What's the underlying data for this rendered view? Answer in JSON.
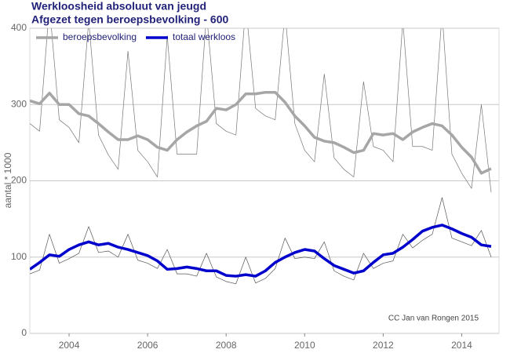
{
  "chart_data": {
    "type": "line",
    "title": "Werkloosheid absoluut van jeugd",
    "subtitle": "Afgezet tegen beroepsbevolking - 600",
    "ylabel": "aantal * 1000",
    "annotation": "CC Jan van Rongen 2015",
    "xlim": [
      2003,
      2014.95
    ],
    "xticks": [
      2004,
      2006,
      2008,
      2010,
      2012,
      2014
    ],
    "ylim": [
      0,
      400
    ],
    "yticks": [
      0,
      100,
      200,
      300,
      400
    ],
    "grid": true,
    "legend": "top-left",
    "x": [
      2003,
      2003.25,
      2003.5,
      2003.75,
      2004,
      2004.25,
      2004.5,
      2004.75,
      2005,
      2005.25,
      2005.5,
      2005.75,
      2006,
      2006.25,
      2006.5,
      2006.75,
      2007,
      2007.25,
      2007.5,
      2007.75,
      2008,
      2008.25,
      2008.5,
      2008.75,
      2009,
      2009.25,
      2009.5,
      2009.75,
      2010,
      2010.25,
      2010.5,
      2010.75,
      2011,
      2011.25,
      2011.5,
      2011.75,
      2012,
      2012.25,
      2012.5,
      2012.75,
      2013,
      2013.25,
      2013.5,
      2013.75,
      2014,
      2014.25,
      2014.5,
      2014.75
    ],
    "series": [
      {
        "name": "beroepsbevolking",
        "color": "#a6a6a6",
        "raw_color": "#777777",
        "values": [
          305,
          301,
          315,
          300,
          300,
          288,
          285,
          275,
          264,
          254,
          254,
          259,
          254,
          244,
          240,
          254,
          264,
          272,
          278,
          295,
          293,
          300,
          314,
          314,
          316,
          316,
          303,
          285,
          272,
          257,
          252,
          250,
          244,
          237,
          240,
          262,
          260,
          262,
          254,
          264,
          270,
          275,
          272,
          260,
          244,
          231,
          210,
          216
        ],
        "raw_values": [
          275,
          265,
          430,
          280,
          270,
          250,
          410,
          260,
          234,
          215,
          370,
          240,
          225,
          205,
          390,
          235,
          235,
          235,
          420,
          275,
          265,
          260,
          430,
          295,
          285,
          280,
          420,
          275,
          240,
          225,
          340,
          230,
          215,
          205,
          330,
          245,
          240,
          225,
          410,
          245,
          245,
          240,
          420,
          235,
          210,
          190,
          300,
          185
        ]
      },
      {
        "name": "totaal werkloos",
        "color": "#0000cc",
        "raw_color": "#555555",
        "values": [
          84,
          93,
          103,
          101,
          110,
          116,
          120,
          116,
          118,
          113,
          110,
          106,
          102,
          95,
          84,
          85,
          87,
          85,
          82,
          82,
          76,
          75,
          77,
          75,
          82,
          93,
          100,
          106,
          110,
          108,
          98,
          89,
          84,
          79,
          82,
          93,
          103,
          105,
          113,
          123,
          134,
          139,
          142,
          137,
          131,
          126,
          116,
          114
        ],
        "raw_values": [
          78,
          83,
          130,
          92,
          98,
          105,
          140,
          106,
          108,
          100,
          130,
          96,
          92,
          85,
          110,
          78,
          78,
          75,
          105,
          74,
          68,
          65,
          100,
          66,
          72,
          85,
          125,
          98,
          100,
          98,
          120,
          82,
          75,
          70,
          105,
          85,
          92,
          95,
          130,
          112,
          122,
          130,
          178,
          125,
          120,
          115,
          135,
          100
        ]
      }
    ]
  }
}
